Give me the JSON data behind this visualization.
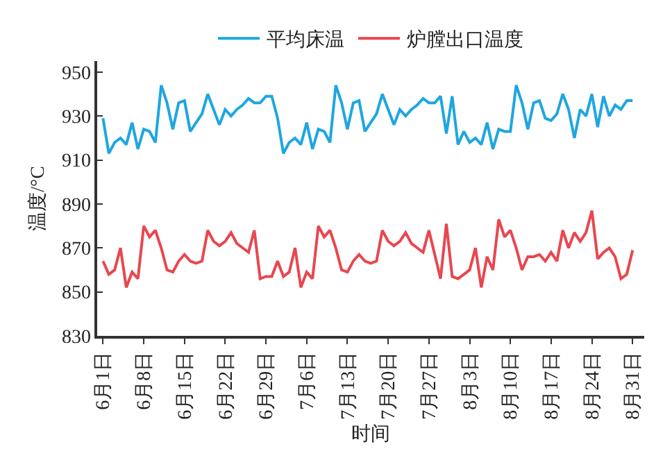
{
  "chart_data": {
    "type": "line",
    "xlabel": "时间",
    "ylabel": "温度/°C",
    "x": [
      "--06-01",
      "--06-02",
      "--06-03",
      "--06-04",
      "--06-05",
      "--06-06",
      "--06-07",
      "--06-08",
      "--06-09",
      "--06-10",
      "--06-11",
      "--06-12",
      "--06-13",
      "--06-14",
      "--06-15",
      "--06-16",
      "--06-17",
      "--06-18",
      "--06-19",
      "--06-20",
      "--06-21",
      "--06-22",
      "--06-23",
      "--06-24",
      "--06-25",
      "--06-26",
      "--06-27",
      "--06-28",
      "--06-29",
      "--06-30",
      "--07-01",
      "--07-02",
      "--07-03",
      "--07-04",
      "--07-05",
      "--07-06",
      "--07-07",
      "--07-08",
      "--07-09",
      "--07-10",
      "--07-11",
      "--07-12",
      "--07-13",
      "--07-14",
      "--07-15",
      "--07-16",
      "--07-17",
      "--07-18",
      "--07-19",
      "--07-20",
      "--07-21",
      "--07-22",
      "--07-23",
      "--07-24",
      "--07-25",
      "--07-26",
      "--07-27",
      "--07-28",
      "--07-29",
      "--07-30",
      "--07-31",
      "--08-01",
      "--08-02",
      "--08-03",
      "--08-04",
      "--08-05",
      "--08-06",
      "--08-07",
      "--08-08",
      "--08-09",
      "--08-10",
      "--08-11",
      "--08-12",
      "--08-13",
      "--08-14",
      "--08-15",
      "--08-16",
      "--08-17",
      "--08-18",
      "--08-19",
      "--08-20",
      "--08-21",
      "--08-22",
      "--08-23",
      "--08-24",
      "--08-25",
      "--08-26",
      "--08-27",
      "--08-28",
      "--08-29",
      "--08-30",
      "--08-31"
    ],
    "series": [
      {
        "name": "平均床温",
        "color": "#1fa6e0",
        "values": [
          929,
          913,
          918,
          920,
          917,
          927,
          915,
          924,
          923,
          918,
          944,
          936,
          924,
          936,
          937,
          923,
          927,
          931,
          940,
          933,
          926,
          933,
          930,
          933,
          935,
          938,
          936,
          936,
          939,
          939,
          929,
          913,
          918,
          920,
          917,
          927,
          915,
          924,
          923,
          918,
          944,
          936,
          924,
          936,
          937,
          923,
          927,
          931,
          940,
          933,
          926,
          933,
          930,
          933,
          935,
          938,
          936,
          936,
          939,
          922,
          939,
          917,
          923,
          918,
          920,
          917,
          927,
          915,
          924,
          923,
          923,
          944,
          936,
          924,
          936,
          937,
          929,
          928,
          931,
          940,
          933,
          920,
          933,
          930,
          940,
          925,
          939,
          930,
          935,
          933,
          937,
          937
        ]
      },
      {
        "name": "炉膛出口温度",
        "color": "#e8474f",
        "values": [
          864,
          858,
          860,
          870,
          852,
          859,
          856,
          880,
          875,
          878,
          870,
          860,
          859,
          864,
          867,
          864,
          863,
          864,
          878,
          873,
          871,
          873,
          877,
          872,
          870,
          868,
          878,
          856,
          857,
          857,
          864,
          857,
          859,
          870,
          852,
          859,
          856,
          880,
          875,
          878,
          870,
          860,
          859,
          864,
          867,
          864,
          863,
          864,
          878,
          873,
          871,
          873,
          877,
          872,
          870,
          868,
          878,
          867,
          856,
          881,
          857,
          856,
          858,
          860,
          870,
          852,
          866,
          860,
          883,
          875,
          878,
          870,
          860,
          866,
          866,
          867,
          864,
          868,
          864,
          878,
          870,
          877,
          873,
          877,
          887,
          865,
          868,
          870,
          866,
          856,
          858,
          869
        ]
      }
    ],
    "xlim": [
      "--05-31",
      "--09-02"
    ],
    "xticks": [
      {
        "value": "--06-01",
        "label": "6月1日"
      },
      {
        "value": "--06-08",
        "label": "6月8日"
      },
      {
        "value": "--06-15",
        "label": "6月15日"
      },
      {
        "value": "--06-22",
        "label": "6月22日"
      },
      {
        "value": "--06-29",
        "label": "6月29日"
      },
      {
        "value": "--07-06",
        "label": "7月6日"
      },
      {
        "value": "--07-13",
        "label": "7月13日"
      },
      {
        "value": "--07-20",
        "label": "7月20日"
      },
      {
        "value": "--07-27",
        "label": "7月27日"
      },
      {
        "value": "--08-03",
        "label": "8月3日"
      },
      {
        "value": "--08-10",
        "label": "8月10日"
      },
      {
        "value": "--08-17",
        "label": "8月17日"
      },
      {
        "value": "--08-24",
        "label": "8月24日"
      },
      {
        "value": "--08-31",
        "label": "8月31日"
      }
    ],
    "ylim": [
      830,
      955
    ],
    "yticks": [
      830,
      850,
      870,
      890,
      910,
      930,
      950
    ],
    "legend": "top",
    "line_style": "solid",
    "marker": "none"
  }
}
